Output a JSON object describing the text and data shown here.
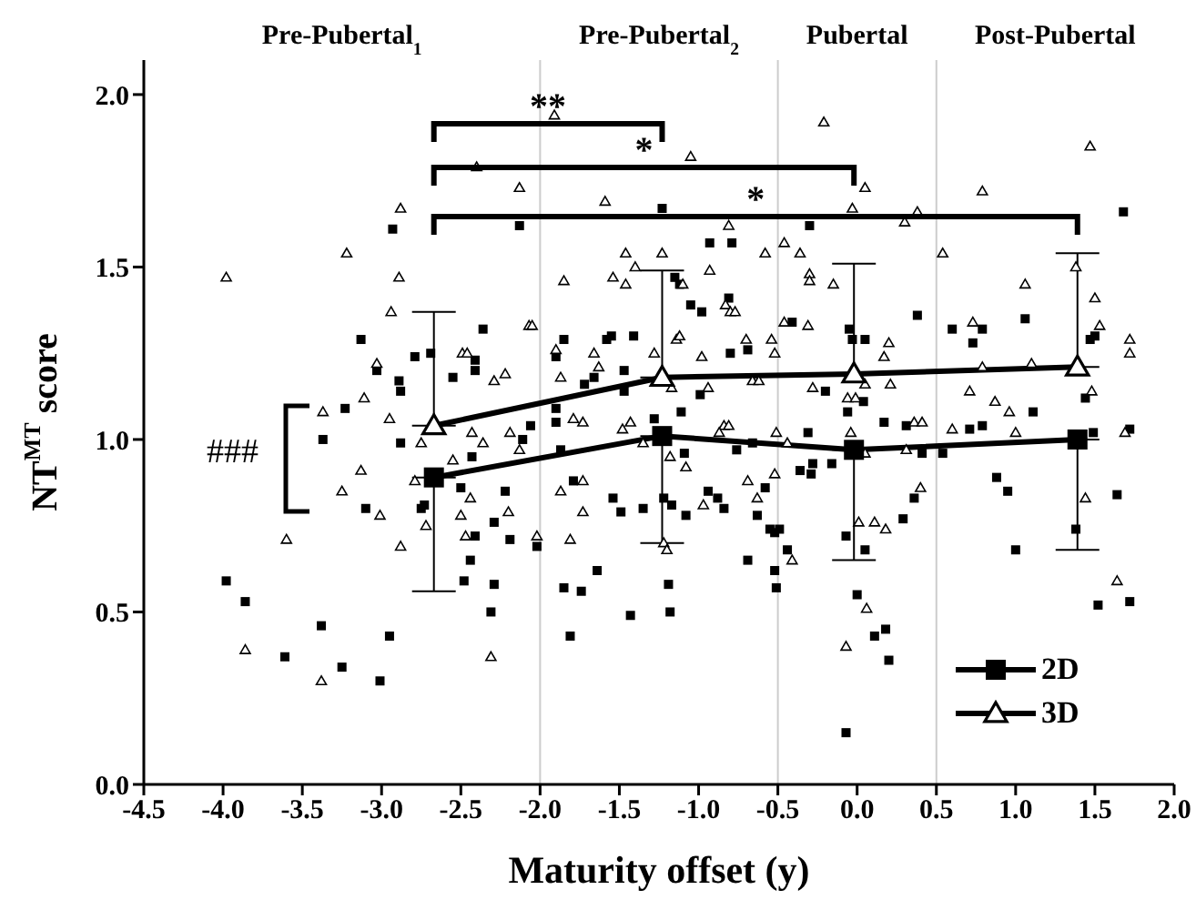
{
  "chart_data": {
    "type": "scatter",
    "xlabel": "Maturity offset (y)",
    "ylabel": "NT$^{MT}$ score",
    "xlim": [
      -4.5,
      2.0
    ],
    "ylim": [
      0,
      2.1
    ],
    "xticks": [
      -4.5,
      {
        "value": -4,
        "label": "-4.0"
      },
      -3.5,
      {
        "value": -3,
        "label": "-3.0"
      },
      -2.5,
      {
        "value": -2,
        "label": "-2.0"
      },
      -1.5,
      {
        "value": -1,
        "label": "-1.0"
      },
      -0.5,
      {
        "value": 0,
        "label": "0.0"
      },
      0.5,
      {
        "value": 1,
        "label": "1.0"
      },
      1.5,
      {
        "value": 2,
        "label": "2.0"
      }
    ],
    "yticks": [
      {
        "value": 0,
        "label": "0.0"
      },
      0.5,
      {
        "value": 1,
        "label": "1.0"
      },
      1.5,
      {
        "value": 2,
        "label": "2.0"
      }
    ],
    "legend": "bottom right",
    "line_style": "solid",
    "ref_lines": [
      {
        "axis": "x",
        "value": -2,
        "color": "#cccccc"
      },
      {
        "axis": "x",
        "value": -0.5,
        "color": "#cccccc"
      },
      {
        "axis": "x",
        "value": 0.5,
        "color": "#cccccc"
      }
    ],
    "annotations": [
      "Pre-Pubertal$_{1}$",
      "Pre-Pubertal$_{2}$",
      "Pubertal",
      "Post-Pubertal",
      "**",
      "*",
      "*",
      "###"
    ],
    "series": [
      {
        "marker": "square",
        "color": "#000000",
        "x": [
          -2.93,
          -2.13,
          -3.13,
          -2.36,
          -2.79,
          -2.69,
          -3.03,
          -2.89,
          -2.88,
          -2.55,
          -2.41,
          -2.41,
          -1.85,
          -1.58,
          -1.55,
          -1.41,
          -1.47,
          -1.9,
          -1.72,
          -1.66,
          -1.47,
          -3.23,
          -3.37,
          -2.88,
          -2.06,
          -2.11,
          -1.9,
          -1.9,
          -1.87,
          -2.43,
          -1.28,
          -1.23,
          -0.3,
          1.68,
          -0.93,
          -0.79,
          -1.15,
          -1.12,
          -0.81,
          -1.05,
          -0.98,
          -0.41,
          -0.05,
          0.38,
          0.6,
          0.79,
          1.06,
          -0.03,
          0.05,
          0.73,
          1.47,
          1.5,
          -0.8,
          -0.69,
          -0.99,
          -0.2,
          0.04,
          1.44,
          -1.11,
          -0.06,
          -0.31,
          0.17,
          0.31,
          0.71,
          0.79,
          1.11,
          1.49,
          1.72,
          -0.76,
          -0.66,
          -0.36,
          -0.28,
          -0.29,
          -0.16,
          0.41,
          0.54,
          0.88,
          -1.09,
          -3.98,
          -3.86,
          -3.38,
          -3.61,
          -3.25,
          -3.01,
          -2.95,
          -3.1,
          -2.75,
          -2.73,
          -2.5,
          -2.22,
          -2.29,
          -2.41,
          -2.19,
          -2.44,
          -2.48,
          -2.29,
          -2.31,
          -2.02,
          -1.79,
          -1.54,
          -1.49,
          -1.35,
          -1.64,
          -1.85,
          -1.74,
          -1.43,
          -1.81,
          -1.22,
          -1.17,
          -1.08,
          -0.94,
          -0.88,
          -0.84,
          -0.58,
          -0.63,
          -0.55,
          -0.52,
          -0.49,
          -0.44,
          -0.52,
          -0.51,
          -0.69,
          -1.19,
          -1.18,
          -0.07,
          0.05,
          0.0,
          0.11,
          0.18,
          0.2,
          -0.07,
          0.29,
          0.36,
          0.95,
          1.0,
          1.38,
          1.64,
          1.52,
          1.72
        ],
        "values": [
          1.61,
          1.62,
          1.29,
          1.32,
          1.24,
          1.25,
          1.2,
          1.17,
          1.14,
          1.18,
          1.23,
          1.2,
          1.29,
          1.29,
          1.3,
          1.3,
          1.2,
          1.24,
          1.16,
          1.18,
          1.14,
          1.09,
          1.0,
          0.99,
          1.04,
          1.0,
          1.09,
          1.05,
          0.97,
          0.95,
          1.06,
          1.67,
          1.62,
          1.66,
          1.57,
          1.57,
          1.47,
          1.45,
          1.41,
          1.39,
          1.37,
          1.34,
          1.32,
          1.36,
          1.32,
          1.32,
          1.35,
          1.29,
          1.29,
          1.28,
          1.29,
          1.3,
          1.25,
          1.26,
          1.13,
          1.14,
          1.11,
          1.12,
          1.08,
          1.08,
          1.02,
          1.05,
          1.04,
          1.03,
          1.04,
          1.08,
          1.02,
          1.03,
          0.97,
          0.99,
          0.91,
          0.93,
          0.9,
          0.93,
          0.96,
          0.96,
          0.89,
          0.96,
          0.59,
          0.53,
          0.46,
          0.37,
          0.34,
          0.3,
          0.43,
          0.8,
          0.8,
          0.81,
          0.86,
          0.85,
          0.76,
          0.72,
          0.71,
          0.65,
          0.59,
          0.58,
          0.5,
          0.69,
          0.88,
          0.83,
          0.79,
          0.8,
          0.62,
          0.57,
          0.56,
          0.49,
          0.43,
          0.83,
          0.81,
          0.78,
          0.85,
          0.83,
          0.8,
          0.86,
          0.78,
          0.74,
          0.73,
          0.74,
          0.68,
          0.62,
          0.57,
          0.65,
          0.58,
          0.5,
          0.72,
          0.68,
          0.55,
          0.43,
          0.45,
          0.36,
          0.15,
          0.77,
          0.83,
          0.85,
          0.68,
          0.74,
          0.84,
          0.52,
          0.53
        ]
      },
      {
        "marker": "triangle",
        "color": "#000000",
        "x": [
          -3.98,
          -3.22,
          -2.88,
          -2.89,
          -2.94,
          -3.03,
          -3.11,
          -3.37,
          -2.95,
          -2.75,
          -3.13,
          -2.13,
          -2.4,
          -1.91,
          -1.59,
          -1.46,
          -1.4,
          -1.54,
          -1.46,
          -1.85,
          -2.07,
          -2.05,
          -2.49,
          -2.46,
          -2.22,
          -2.29,
          -1.9,
          -1.66,
          -1.63,
          -1.87,
          -1.79,
          -1.73,
          -1.48,
          -1.43,
          -2.43,
          -2.36,
          -2.19,
          -2.13,
          -2.55,
          -1.28,
          -1.35,
          -0.21,
          1.47,
          -1.05,
          0.05,
          0.79,
          -0.03,
          0.38,
          -0.81,
          0.3,
          -0.46,
          -1.23,
          -0.58,
          -0.36,
          0.54,
          -0.93,
          -0.3,
          -0.3,
          -0.15,
          -1.1,
          1.06,
          1.38,
          1.5,
          1.53,
          1.72,
          1.72,
          -0.83,
          -0.8,
          -0.77,
          -0.46,
          -0.31,
          0.73,
          -1.14,
          -1.12,
          -0.7,
          -0.54,
          -0.52,
          -0.98,
          0.2,
          0.17,
          0.79,
          1.1,
          -1.17,
          -0.94,
          -0.66,
          -0.62,
          -0.28,
          -0.06,
          -0.01,
          0.05,
          0.21,
          0.71,
          0.87,
          0.96,
          1.48,
          -0.84,
          -0.81,
          -0.51,
          -0.04,
          0.36,
          0.41,
          0.6,
          1.0,
          1.69,
          -0.87,
          -1.18,
          -1.08,
          -0.69,
          -0.52,
          -0.44,
          0.05,
          0.31,
          -3.6,
          -3.86,
          -3.38,
          -3.25,
          -3.01,
          -2.88,
          -2.72,
          -2.79,
          -2.5,
          -2.47,
          -2.44,
          -2.2,
          -2.02,
          -2.31,
          -1.87,
          -1.81,
          -1.73,
          -1.73,
          -0.63,
          -0.97,
          -1.22,
          -1.2,
          -0.41,
          0.01,
          0.11,
          0.18,
          0.4,
          0.06,
          -0.07,
          1.44,
          1.64
        ],
        "values": [
          1.47,
          1.54,
          1.67,
          1.47,
          1.37,
          1.22,
          1.12,
          1.08,
          1.06,
          0.99,
          0.91,
          1.73,
          1.79,
          1.94,
          1.69,
          1.54,
          1.5,
          1.47,
          1.45,
          1.46,
          1.33,
          1.33,
          1.25,
          1.25,
          1.19,
          1.17,
          1.26,
          1.25,
          1.21,
          1.18,
          1.06,
          1.05,
          1.03,
          1.05,
          1.02,
          0.99,
          1.02,
          0.97,
          0.94,
          1.25,
          0.99,
          1.92,
          1.85,
          1.82,
          1.73,
          1.72,
          1.67,
          1.66,
          1.62,
          1.63,
          1.57,
          1.54,
          1.54,
          1.54,
          1.54,
          1.49,
          1.48,
          1.46,
          1.45,
          1.45,
          1.45,
          1.5,
          1.41,
          1.33,
          1.29,
          1.25,
          1.39,
          1.37,
          1.37,
          1.34,
          1.33,
          1.34,
          1.29,
          1.3,
          1.29,
          1.29,
          1.25,
          1.24,
          1.28,
          1.24,
          1.21,
          1.22,
          1.15,
          1.15,
          1.17,
          1.17,
          1.15,
          1.12,
          1.12,
          1.16,
          1.16,
          1.14,
          1.11,
          1.08,
          1.14,
          1.04,
          1.04,
          1.02,
          1.02,
          1.05,
          1.05,
          1.03,
          1.02,
          1.02,
          1.02,
          0.95,
          0.92,
          0.88,
          0.9,
          0.99,
          0.96,
          0.97,
          0.71,
          0.39,
          0.3,
          0.85,
          0.78,
          0.69,
          0.75,
          0.88,
          0.78,
          0.72,
          0.83,
          0.79,
          0.72,
          0.37,
          0.85,
          0.71,
          0.79,
          0.88,
          0.83,
          0.81,
          0.7,
          0.68,
          0.65,
          0.76,
          0.76,
          0.74,
          0.86,
          0.51,
          0.4,
          0.83,
          0.59
        ]
      },
      {
        "type": "line",
        "name": "2D",
        "marker": "square",
        "color": "#000000",
        "x": [
          -2.67,
          -1.23,
          -0.02,
          1.39
        ],
        "values": [
          0.89,
          1.01,
          0.97,
          1.0
        ],
        "errors": [
          [
            0.56,
            0.89
          ],
          [
            0.7,
            1.01
          ],
          [
            0.65,
            0.97
          ],
          [
            0.68,
            1.0
          ]
        ]
      },
      {
        "type": "line",
        "name": "3D",
        "marker": "triangle",
        "color": "#000000",
        "x": [
          -2.67,
          -1.23,
          -0.02,
          1.39
        ],
        "values": [
          1.04,
          1.18,
          1.19,
          1.21
        ],
        "errors": [
          [
            1.04,
            1.37
          ],
          [
            1.18,
            1.49
          ],
          [
            1.19,
            1.51
          ],
          [
            1.21,
            1.54
          ]
        ]
      }
    ]
  }
}
